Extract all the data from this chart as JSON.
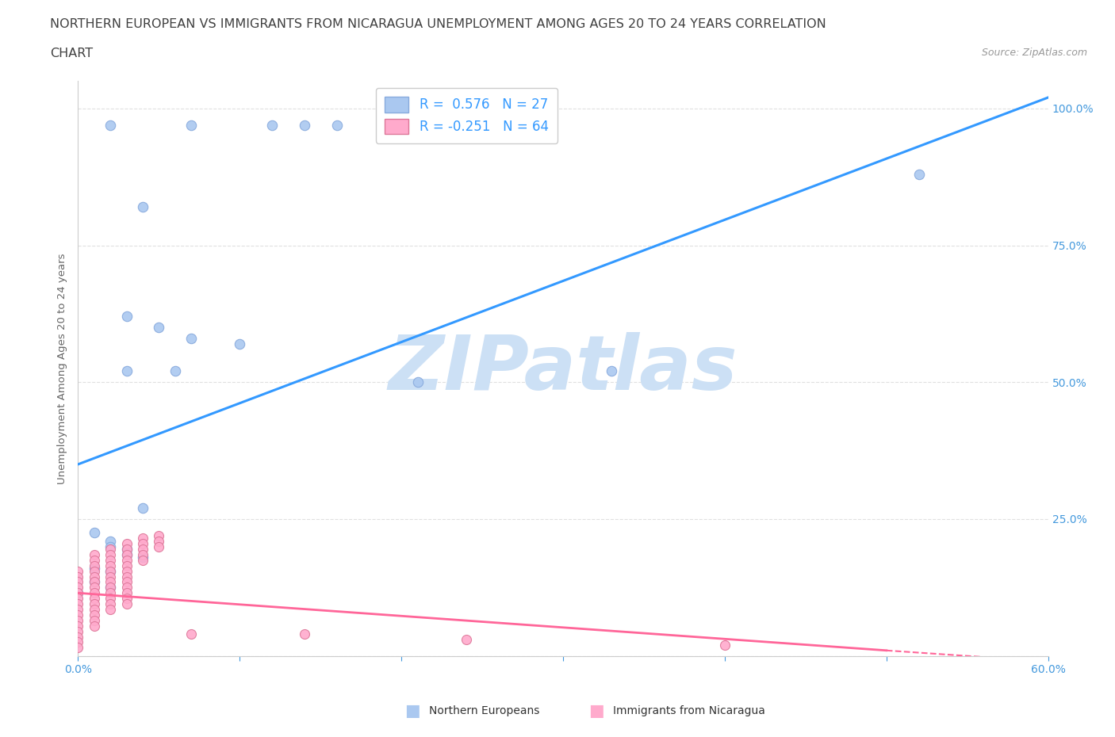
{
  "title_line1": "NORTHERN EUROPEAN VS IMMIGRANTS FROM NICARAGUA UNEMPLOYMENT AMONG AGES 20 TO 24 YEARS CORRELATION",
  "title_line2": "CHART",
  "source_text": "Source: ZipAtlas.com",
  "watermark": "ZIPatlas",
  "ylabel": "Unemployment Among Ages 20 to 24 years",
  "xlim": [
    0.0,
    0.6
  ],
  "ylim": [
    0.0,
    1.05
  ],
  "blue_R": 0.576,
  "blue_N": 27,
  "pink_R": -0.251,
  "pink_N": 64,
  "blue_color": "#aac8f0",
  "blue_line_color": "#3399ff",
  "pink_color": "#ffaacc",
  "pink_line_color": "#ff6699",
  "blue_scatter": [
    [
      0.02,
      0.97
    ],
    [
      0.07,
      0.97
    ],
    [
      0.12,
      0.97
    ],
    [
      0.14,
      0.97
    ],
    [
      0.16,
      0.97
    ],
    [
      0.04,
      0.82
    ],
    [
      0.03,
      0.62
    ],
    [
      0.05,
      0.6
    ],
    [
      0.07,
      0.58
    ],
    [
      0.1,
      0.57
    ],
    [
      0.03,
      0.52
    ],
    [
      0.06,
      0.52
    ],
    [
      0.21,
      0.5
    ],
    [
      0.33,
      0.52
    ],
    [
      0.04,
      0.27
    ],
    [
      0.52,
      0.88
    ],
    [
      0.01,
      0.225
    ],
    [
      0.02,
      0.21
    ],
    [
      0.02,
      0.2
    ],
    [
      0.03,
      0.195
    ],
    [
      0.03,
      0.185
    ],
    [
      0.04,
      0.18
    ],
    [
      0.01,
      0.16
    ],
    [
      0.02,
      0.155
    ],
    [
      0.01,
      0.135
    ],
    [
      0.02,
      0.125
    ],
    [
      0.0,
      0.115
    ]
  ],
  "pink_scatter": [
    [
      0.0,
      0.155
    ],
    [
      0.0,
      0.145
    ],
    [
      0.0,
      0.135
    ],
    [
      0.0,
      0.125
    ],
    [
      0.0,
      0.115
    ],
    [
      0.0,
      0.105
    ],
    [
      0.0,
      0.095
    ],
    [
      0.0,
      0.085
    ],
    [
      0.0,
      0.075
    ],
    [
      0.0,
      0.065
    ],
    [
      0.0,
      0.055
    ],
    [
      0.0,
      0.045
    ],
    [
      0.0,
      0.035
    ],
    [
      0.0,
      0.025
    ],
    [
      0.0,
      0.015
    ],
    [
      0.01,
      0.185
    ],
    [
      0.01,
      0.175
    ],
    [
      0.01,
      0.165
    ],
    [
      0.01,
      0.155
    ],
    [
      0.01,
      0.145
    ],
    [
      0.01,
      0.135
    ],
    [
      0.01,
      0.125
    ],
    [
      0.01,
      0.115
    ],
    [
      0.01,
      0.105
    ],
    [
      0.01,
      0.095
    ],
    [
      0.01,
      0.085
    ],
    [
      0.01,
      0.075
    ],
    [
      0.01,
      0.065
    ],
    [
      0.01,
      0.055
    ],
    [
      0.02,
      0.195
    ],
    [
      0.02,
      0.185
    ],
    [
      0.02,
      0.175
    ],
    [
      0.02,
      0.165
    ],
    [
      0.02,
      0.155
    ],
    [
      0.02,
      0.145
    ],
    [
      0.02,
      0.135
    ],
    [
      0.02,
      0.125
    ],
    [
      0.02,
      0.115
    ],
    [
      0.02,
      0.105
    ],
    [
      0.02,
      0.095
    ],
    [
      0.02,
      0.085
    ],
    [
      0.03,
      0.205
    ],
    [
      0.03,
      0.195
    ],
    [
      0.03,
      0.185
    ],
    [
      0.03,
      0.175
    ],
    [
      0.03,
      0.165
    ],
    [
      0.03,
      0.155
    ],
    [
      0.03,
      0.145
    ],
    [
      0.03,
      0.135
    ],
    [
      0.03,
      0.125
    ],
    [
      0.03,
      0.115
    ],
    [
      0.03,
      0.105
    ],
    [
      0.03,
      0.095
    ],
    [
      0.04,
      0.215
    ],
    [
      0.04,
      0.205
    ],
    [
      0.04,
      0.195
    ],
    [
      0.04,
      0.185
    ],
    [
      0.04,
      0.175
    ],
    [
      0.05,
      0.22
    ],
    [
      0.05,
      0.21
    ],
    [
      0.05,
      0.2
    ],
    [
      0.07,
      0.04
    ],
    [
      0.14,
      0.04
    ],
    [
      0.24,
      0.03
    ],
    [
      0.4,
      0.02
    ]
  ],
  "blue_line_x0": 0.0,
  "blue_line_y0": 0.35,
  "blue_line_x1": 0.6,
  "blue_line_y1": 1.02,
  "pink_line_x0": 0.0,
  "pink_line_y0": 0.115,
  "pink_line_x1": 0.5,
  "pink_line_y1": 0.01,
  "pink_line_dash_x0": 0.5,
  "pink_line_dash_y0": 0.01,
  "pink_line_dash_x1": 0.6,
  "pink_line_dash_y1": -0.01,
  "grid_color": "#e0e0e0",
  "background_color": "#ffffff",
  "axis_color": "#a0a0a0",
  "title_color": "#404040",
  "label_color": "#4499dd",
  "watermark_color": "#cce0f5",
  "watermark_fontsize": 70
}
